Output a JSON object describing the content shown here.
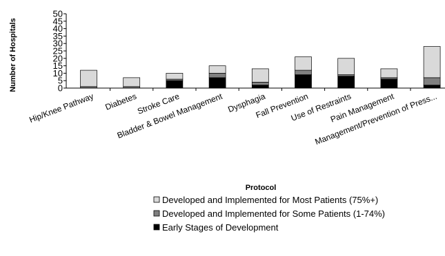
{
  "chart_data": {
    "type": "bar",
    "stacked": true,
    "title": "",
    "xlabel": "Protocol",
    "ylabel": "Number of Hospitals",
    "ylim": [
      0,
      50
    ],
    "yticks": [
      0,
      5,
      10,
      15,
      20,
      25,
      30,
      35,
      40,
      45,
      50
    ],
    "grid": false,
    "legend_position": "bottom",
    "categories": [
      "Hip/Knee Pathway",
      "Diabetes",
      "Stroke Care",
      "Bladder & Bowel Management",
      "Dysphagia",
      "Fall Prevention",
      "Use of Restraints",
      "Pain Management",
      "Management/Prevention of Press..."
    ],
    "series": [
      {
        "name": "Early Stages of Development",
        "color": "#000000",
        "values": [
          0,
          0,
          5,
          7,
          2,
          9,
          8,
          6,
          2
        ]
      },
      {
        "name": "Developed and Implemented for Some Patients (1-74%)",
        "color": "#808080",
        "values": [
          1,
          1,
          1,
          3,
          2,
          3,
          1,
          1,
          5
        ]
      },
      {
        "name": "Developed and Implemented for Most Patients (75%+)",
        "color": "#d9d9d9",
        "values": [
          11,
          6,
          4,
          5,
          9,
          9,
          11,
          6,
          21
        ]
      }
    ],
    "legend_order": [
      2,
      1,
      0
    ]
  }
}
